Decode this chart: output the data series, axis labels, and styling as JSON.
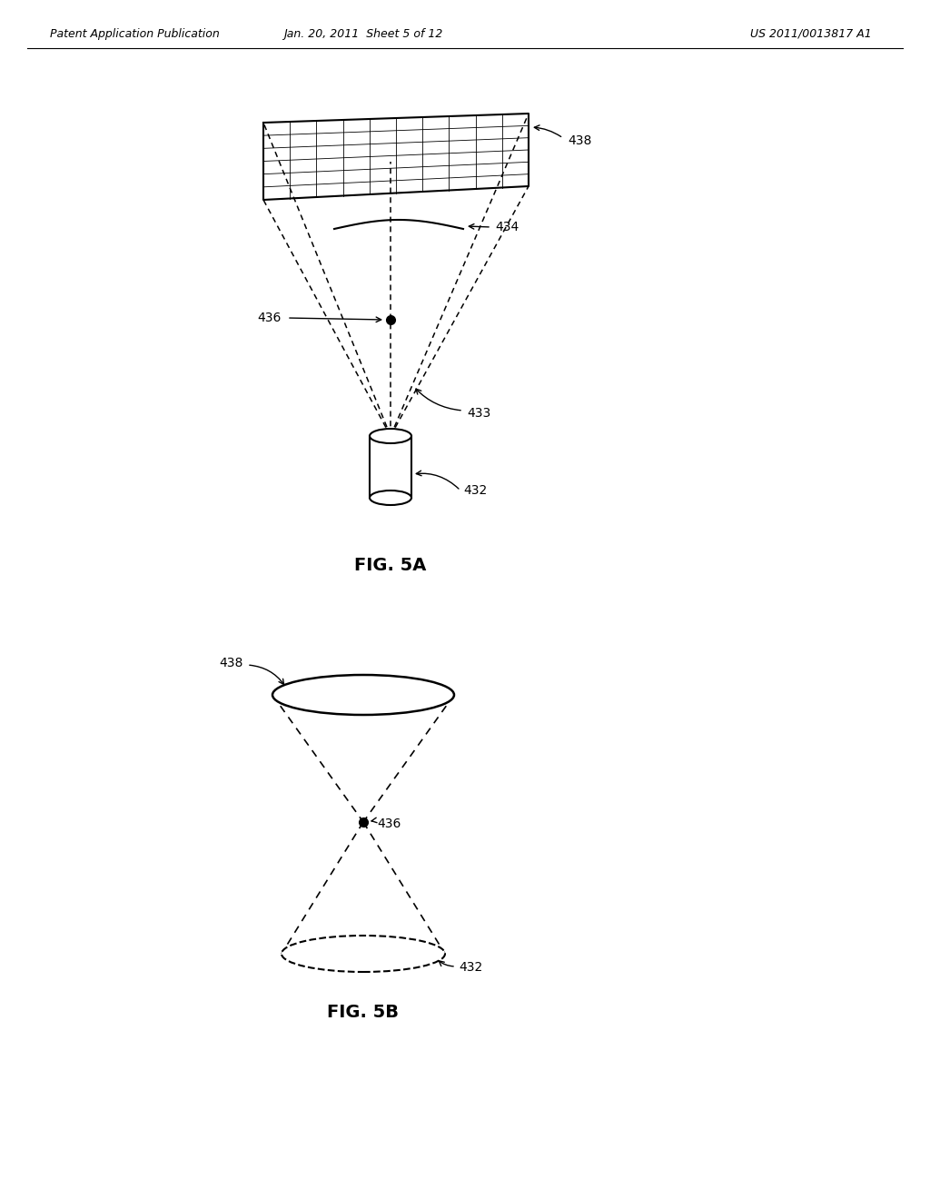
{
  "bg_color": "#ffffff",
  "text_color": "#000000",
  "header_left": "Patent Application Publication",
  "header_center": "Jan. 20, 2011  Sheet 5 of 12",
  "header_right": "US 2011/0013817 A1",
  "fig5a_label": "FIG. 5A",
  "fig5b_label": "FIG. 5B",
  "label_432_5a": "432",
  "label_433": "433",
  "label_434": "434",
  "label_436_5a": "436",
  "label_438_5a": "438",
  "label_432_5b": "432",
  "label_436_5b": "436",
  "label_438_5b": "438",
  "line_color": "#000000"
}
